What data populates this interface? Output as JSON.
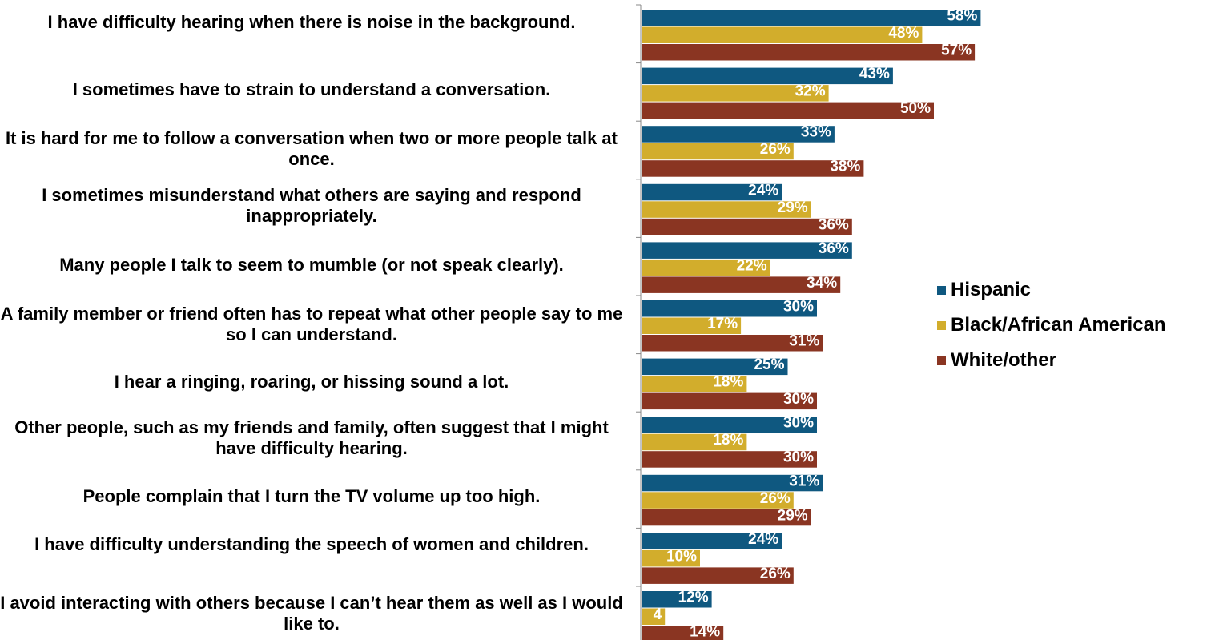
{
  "chart_data": {
    "type": "bar",
    "orientation": "horizontal",
    "categories": [
      "I have difficulty hearing when there is noise in the background.",
      "I sometimes have to strain to understand a conversation.",
      "It is hard for me to follow a conversation when two or more people talk at once.",
      "I sometimes misunderstand what others are saying and respond inappropriately.",
      "Many people I talk to seem to mumble (or not speak clearly).",
      "A family member or friend often has to repeat what other people say to me so I can understand.",
      "I hear a ringing, roaring, or hissing sound a lot.",
      "Other people, such as my friends and family, often suggest that I might have difficulty hearing.",
      "People complain that I turn the TV volume up too high.",
      "I have difficulty understanding the speech of women and children.",
      "I avoid interacting with others because I can’t hear them as well as I would like to."
    ],
    "series": [
      {
        "name": "Hispanic",
        "color": "#0f5880",
        "values": [
          58,
          43,
          33,
          24,
          36,
          30,
          25,
          30,
          31,
          24,
          12
        ],
        "labels": [
          "58%",
          "43%",
          "33%",
          "24%",
          "36%",
          "30%",
          "25%",
          "30%",
          "31%",
          "24%",
          "12%"
        ]
      },
      {
        "name": "Black/African American",
        "color": "#d2ad2c",
        "values": [
          48,
          32,
          26,
          29,
          22,
          17,
          18,
          18,
          26,
          10,
          4
        ],
        "labels": [
          "48%",
          "32%",
          "26%",
          "29%",
          "22%",
          "17%",
          "18%",
          "18%",
          "26%",
          "10%",
          "4"
        ]
      },
      {
        "name": "White/other",
        "color": "#8a3522",
        "values": [
          57,
          50,
          38,
          36,
          34,
          31,
          30,
          30,
          29,
          26,
          14
        ],
        "labels": [
          "57%",
          "50%",
          "38%",
          "36%",
          "34%",
          "31%",
          "30%",
          "30%",
          "29%",
          "26%",
          "14%"
        ]
      }
    ],
    "xlim": [
      0,
      100
    ],
    "grid": false,
    "legend_position": "right"
  }
}
